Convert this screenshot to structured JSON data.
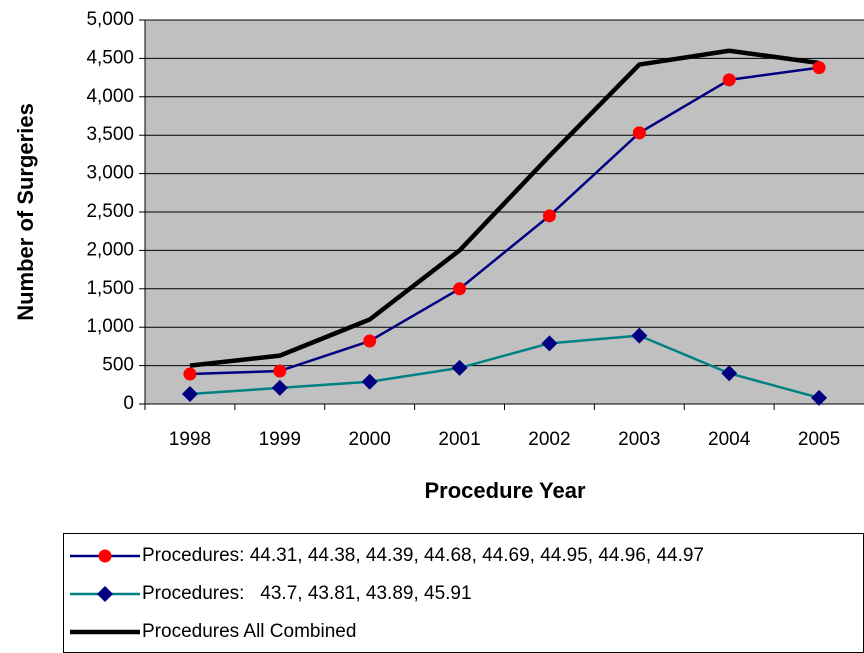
{
  "chart_data": {
    "type": "line",
    "x_label": "Procedure Year",
    "y_label": "Number of Surgeries",
    "categories": [
      "1998",
      "1999",
      "2000",
      "2001",
      "2002",
      "2003",
      "2004",
      "2005"
    ],
    "series": [
      {
        "name": "Procedures: 44.31, 44.38, 44.39, 44.68, 44.69, 44.95, 44.96, 44.97",
        "color": "#000080",
        "marker": "circle",
        "marker_color": "#ff0000",
        "values": [
          390,
          430,
          820,
          1500,
          2450,
          3530,
          4220,
          4380
        ]
      },
      {
        "name": "Procedures:   43.7, 43.81, 43.89, 45.91",
        "color": "#008080",
        "marker": "diamond",
        "marker_color": "#000080",
        "values": [
          130,
          210,
          290,
          470,
          790,
          890,
          400,
          80
        ]
      },
      {
        "name": "Procedures All Combined",
        "color": "#000000",
        "marker": "none",
        "values": [
          500,
          630,
          1100,
          2000,
          3230,
          4420,
          4600,
          4440
        ]
      }
    ],
    "ylim": [
      0,
      5000
    ],
    "yticks": [
      0,
      500,
      {
        "value": 1000,
        "label": "1,000"
      },
      {
        "value": 1500,
        "label": "1,500"
      },
      {
        "value": 2000,
        "label": "2,000"
      },
      {
        "value": 2500,
        "label": "2,500"
      },
      {
        "value": 3000,
        "label": "3,000"
      },
      {
        "value": 3500,
        "label": "3,500"
      },
      {
        "value": 4000,
        "label": "4,000"
      },
      {
        "value": 4500,
        "label": "4,500"
      },
      {
        "value": 5000,
        "label": "5,000"
      }
    ],
    "grid": true,
    "plot_background": "#c0c0c0",
    "legend": "bottom"
  }
}
